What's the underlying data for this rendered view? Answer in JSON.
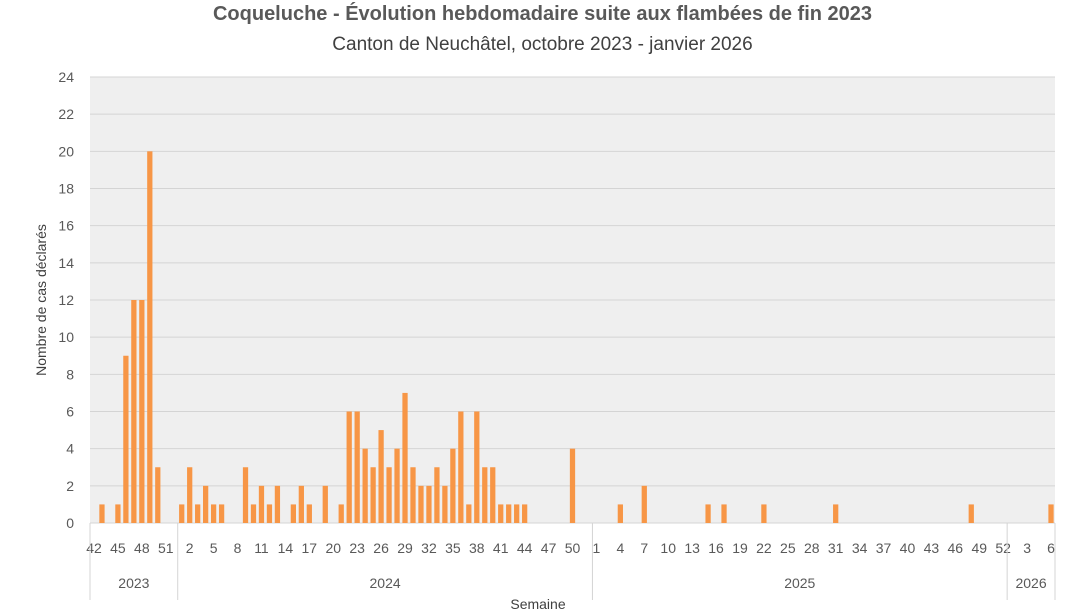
{
  "chart_data": {
    "type": "bar",
    "title": "Coqueluche - Évolution hebdomadaire suite aux flambées de fin 2023",
    "subtitle": "Canton de Neuchâtel, octobre 2023 - janvier 2026",
    "xlabel": "Semaine",
    "ylabel": "Nombre de cas déclarés",
    "ylim": [
      0,
      24
    ],
    "yticks": [
      0,
      2,
      4,
      6,
      8,
      10,
      12,
      14,
      16,
      18,
      20,
      22,
      24
    ],
    "grid": true,
    "bar_color": "#F79646",
    "plot_background": "#EFEFEF",
    "years": [
      {
        "label": "2023",
        "weeks": [
          42,
          43,
          44,
          45,
          46,
          47,
          48,
          49,
          50,
          51,
          52
        ],
        "values": [
          0,
          1,
          0,
          1,
          9,
          12,
          12,
          20,
          3,
          0,
          0
        ]
      },
      {
        "label": "2024",
        "weeks": [
          1,
          2,
          3,
          4,
          5,
          6,
          7,
          8,
          9,
          10,
          11,
          12,
          13,
          14,
          15,
          16,
          17,
          18,
          19,
          20,
          21,
          22,
          23,
          24,
          25,
          26,
          27,
          28,
          29,
          30,
          31,
          32,
          33,
          34,
          35,
          36,
          37,
          38,
          39,
          40,
          41,
          42,
          43,
          44,
          45,
          46,
          47,
          48,
          49,
          50,
          51,
          52
        ],
        "values": [
          1,
          3,
          1,
          2,
          1,
          1,
          0,
          0,
          3,
          1,
          2,
          1,
          2,
          0,
          1,
          2,
          1,
          0,
          2,
          0,
          1,
          6,
          6,
          4,
          3,
          5,
          3,
          4,
          7,
          3,
          2,
          2,
          3,
          2,
          4,
          6,
          1,
          6,
          3,
          3,
          1,
          1,
          1,
          1,
          0,
          0,
          0,
          0,
          0,
          4,
          0,
          0
        ]
      },
      {
        "label": "2025",
        "weeks": [
          1,
          2,
          3,
          4,
          5,
          6,
          7,
          8,
          9,
          10,
          11,
          12,
          13,
          14,
          15,
          16,
          17,
          18,
          19,
          20,
          21,
          22,
          23,
          24,
          25,
          26,
          27,
          28,
          29,
          30,
          31,
          32,
          33,
          34,
          35,
          36,
          37,
          38,
          39,
          40,
          41,
          42,
          43,
          44,
          45,
          46,
          47,
          48,
          49,
          50,
          51,
          52
        ],
        "values": [
          0,
          0,
          0,
          1,
          0,
          0,
          2,
          0,
          0,
          0,
          0,
          0,
          0,
          0,
          1,
          0,
          1,
          0,
          0,
          0,
          0,
          1,
          0,
          0,
          0,
          0,
          0,
          0,
          0,
          0,
          1,
          0,
          0,
          0,
          0,
          0,
          0,
          0,
          0,
          0,
          0,
          0,
          0,
          0,
          0,
          0,
          0,
          1,
          0,
          0,
          0,
          0
        ]
      },
      {
        "label": "2026",
        "weeks": [
          1,
          2,
          3,
          4,
          5,
          6
        ],
        "values": [
          0,
          0,
          0,
          0,
          0,
          1
        ]
      }
    ],
    "x_tick_labels": [
      {
        "year": 0,
        "week": 42
      },
      {
        "year": 0,
        "week": 45
      },
      {
        "year": 0,
        "week": 48
      },
      {
        "year": 0,
        "week": 51
      },
      {
        "year": 1,
        "week": 2
      },
      {
        "year": 1,
        "week": 5
      },
      {
        "year": 1,
        "week": 8
      },
      {
        "year": 1,
        "week": 11
      },
      {
        "year": 1,
        "week": 14
      },
      {
        "year": 1,
        "week": 17
      },
      {
        "year": 1,
        "week": 20
      },
      {
        "year": 1,
        "week": 23
      },
      {
        "year": 1,
        "week": 26
      },
      {
        "year": 1,
        "week": 29
      },
      {
        "year": 1,
        "week": 32
      },
      {
        "year": 1,
        "week": 35
      },
      {
        "year": 1,
        "week": 38
      },
      {
        "year": 1,
        "week": 41
      },
      {
        "year": 1,
        "week": 44
      },
      {
        "year": 1,
        "week": 47
      },
      {
        "year": 1,
        "week": 50
      },
      {
        "year": 2,
        "week": 1
      },
      {
        "year": 2,
        "week": 4
      },
      {
        "year": 2,
        "week": 7
      },
      {
        "year": 2,
        "week": 10
      },
      {
        "year": 2,
        "week": 13
      },
      {
        "year": 2,
        "week": 16
      },
      {
        "year": 2,
        "week": 19
      },
      {
        "year": 2,
        "week": 22
      },
      {
        "year": 2,
        "week": 25
      },
      {
        "year": 2,
        "week": 28
      },
      {
        "year": 2,
        "week": 31
      },
      {
        "year": 2,
        "week": 34
      },
      {
        "year": 2,
        "week": 37
      },
      {
        "year": 2,
        "week": 40
      },
      {
        "year": 2,
        "week": 43
      },
      {
        "year": 2,
        "week": 46
      },
      {
        "year": 2,
        "week": 49
      },
      {
        "year": 2,
        "week": 52
      },
      {
        "year": 3,
        "week": 3
      },
      {
        "year": 3,
        "week": 6
      }
    ]
  }
}
